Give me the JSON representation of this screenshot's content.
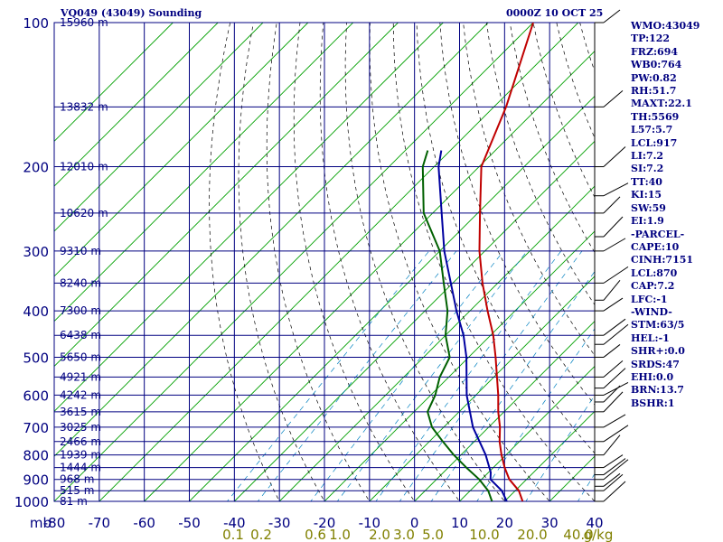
{
  "header": {
    "station": "VQ049 (43049) Sounding",
    "time": "0000Z 10 OCT 25"
  },
  "indices": [
    "WMO:43049",
    "TP:122",
    "FRZ:694",
    "WB0:764",
    "PW:0.82",
    "RH:51.7",
    "MAXT:22.1",
    "TH:5569",
    "L57:5.7",
    "LCL:917",
    "LI:7.2",
    "SI:7.2",
    "TT:40",
    "KI:15",
    "SW:59",
    "EI:1.9",
    "-PARCEL-",
    "CAPE:10",
    "CINH:7151",
    "LCL:870",
    "CAP:7.2",
    "LFC:-1",
    "-WIND-",
    "STM:63/5",
    "HEL:-1",
    "SHR+:0.0",
    "SRDS:47",
    "EHI:0.0",
    "BRN:13.7",
    "BSHR:1"
  ],
  "chart_data": {
    "type": "line",
    "subtype": "skew-t log-p sounding",
    "xlabel": "mb",
    "x_ticks": [
      -80,
      -70,
      -60,
      -50,
      -40,
      -30,
      -20,
      -10,
      0,
      10,
      20,
      30,
      40
    ],
    "xlim": [
      -80,
      40
    ],
    "y_scale": "log",
    "ylim": [
      1000,
      100
    ],
    "pressure_ticks": [
      100,
      200,
      300,
      400,
      500,
      600,
      700,
      800,
      900,
      1000
    ],
    "mixing_ratio_labels": [
      "0.1",
      "0.2",
      "0.6",
      "1.0",
      "2.0",
      "3.0",
      "5.0",
      "10.0",
      "20.0",
      "40.0",
      "g/kg"
    ],
    "height_labels": [
      {
        "p": 100,
        "label": "15960 m"
      },
      {
        "p": 150,
        "label": "13832 m"
      },
      {
        "p": 200,
        "label": "12010 m"
      },
      {
        "p": 250,
        "label": "10620 m"
      },
      {
        "p": 300,
        "label": "9310 m"
      },
      {
        "p": 350,
        "label": "8240 m"
      },
      {
        "p": 400,
        "label": "7300 m"
      },
      {
        "p": 450,
        "label": "6438 m"
      },
      {
        "p": 500,
        "label": "5650 m"
      },
      {
        "p": 550,
        "label": "4921 m"
      },
      {
        "p": 600,
        "label": "4242 m"
      },
      {
        "p": 650,
        "label": "3615 m"
      },
      {
        "p": 700,
        "label": "3025 m"
      },
      {
        "p": 750,
        "label": "2466 m"
      },
      {
        "p": 800,
        "label": "1939 m"
      },
      {
        "p": 850,
        "label": "1444 m"
      },
      {
        "p": 900,
        "label": "968 m"
      },
      {
        "p": 950,
        "label": "515 m"
      },
      {
        "p": 1000,
        "label": "81 m"
      }
    ],
    "series": [
      {
        "key": "temperature",
        "color": "#c00000",
        "points": [
          [
            1000,
            24.0
          ],
          [
            950,
            20.8
          ],
          [
            900,
            16.2
          ],
          [
            850,
            12.5
          ],
          [
            800,
            9.0
          ],
          [
            750,
            5.6
          ],
          [
            700,
            2.5
          ],
          [
            650,
            -1.3
          ],
          [
            600,
            -5.0
          ],
          [
            550,
            -9.3
          ],
          [
            500,
            -14.0
          ],
          [
            450,
            -19.4
          ],
          [
            400,
            -26.1
          ],
          [
            350,
            -33.4
          ],
          [
            300,
            -41.2
          ],
          [
            250,
            -49.5
          ],
          [
            200,
            -59.5
          ],
          [
            150,
            -67.3
          ],
          [
            100,
            -80.0
          ]
        ]
      },
      {
        "key": "dewpoint",
        "color": "#006000",
        "points": [
          [
            1000,
            17.2
          ],
          [
            950,
            14.0
          ],
          [
            900,
            9.5
          ],
          [
            850,
            4.0
          ],
          [
            800,
            -1.6
          ],
          [
            750,
            -7.0
          ],
          [
            700,
            -12.6
          ],
          [
            650,
            -17.0
          ],
          [
            600,
            -19.0
          ],
          [
            550,
            -22.0
          ],
          [
            500,
            -24.2
          ],
          [
            450,
            -30.0
          ],
          [
            400,
            -35.0
          ],
          [
            350,
            -42.0
          ],
          [
            300,
            -50.0
          ],
          [
            250,
            -62.0
          ],
          [
            200,
            -72.5
          ],
          [
            185,
            -75.0
          ]
        ]
      },
      {
        "key": "parcel",
        "color": "#0000a0",
        "points": [
          [
            1000,
            20.5
          ],
          [
            950,
            17.0
          ],
          [
            900,
            12.0
          ],
          [
            870,
            10.5
          ],
          [
            800,
            5.5
          ],
          [
            700,
            -3.5
          ],
          [
            600,
            -12.0
          ],
          [
            500,
            -20.5
          ],
          [
            450,
            -26.0
          ],
          [
            400,
            -33.0
          ],
          [
            300,
            -49.0
          ],
          [
            250,
            -58.0
          ],
          [
            200,
            -69.0
          ],
          [
            185,
            -72.0
          ]
        ]
      }
    ]
  },
  "colors": {
    "grid": "#000080",
    "isotherm": "#00a000",
    "dry_adiabat": "#000000",
    "mixing_ratio": "#0080c0",
    "label_text": "#000080",
    "mixing_label": "#808000"
  }
}
